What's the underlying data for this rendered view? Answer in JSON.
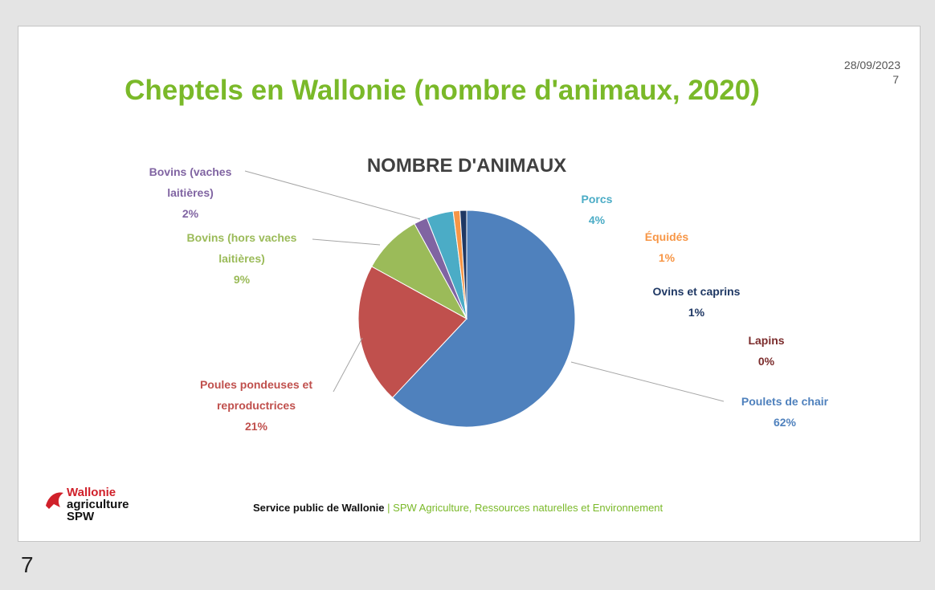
{
  "slide": {
    "date": "28/09/2023",
    "page": "7",
    "title": "Cheptels en Wallonie (nombre d'animaux, 2020)",
    "logo": {
      "line1": "Wallonie",
      "line2": "agriculture",
      "line3": "SPW"
    },
    "footer": {
      "left": "Service public de Wallonie",
      "separator": "|",
      "right": "SPW Agriculture, Ressources naturelles et Environnement"
    }
  },
  "thumbnail_number": "7",
  "chart_data": {
    "type": "pie",
    "title": "NOMBRE D'ANIMAUX",
    "categories": [
      "Poulets de chair",
      "Poules pondeuses et reproductrices",
      "Bovins (hors vaches laitières)",
      "Bovins (vaches laitières)",
      "Porcs",
      "Équidés",
      "Ovins et caprins",
      "Lapins"
    ],
    "values": [
      62,
      21,
      9,
      2,
      4,
      1,
      1,
      0
    ],
    "value_labels": [
      "62%",
      "21%",
      "9%",
      "2%",
      "4%",
      "1%",
      "1%",
      "0%"
    ],
    "colors": [
      "#4f81bd",
      "#c0504d",
      "#9bbb59",
      "#8064a2",
      "#4bacc6",
      "#f79646",
      "#1f3864",
      "#7b2c2c"
    ]
  }
}
